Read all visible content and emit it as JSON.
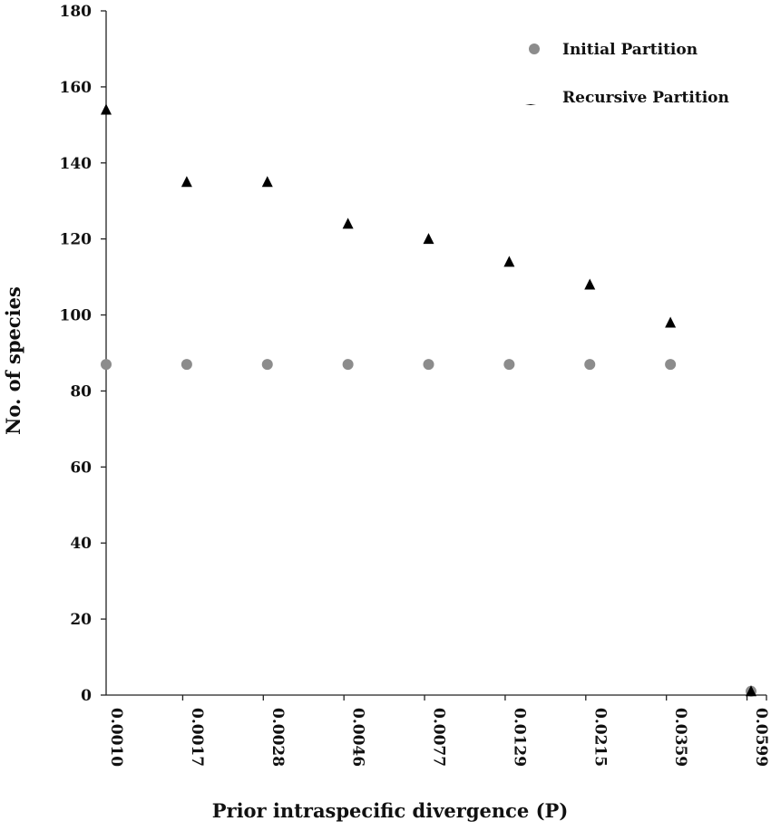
{
  "chart_data": {
    "type": "scatter",
    "title": "",
    "xlabel": "Prior intraspecific divergence (P)",
    "ylabel": "No. of species",
    "categories": [
      "0.0010",
      "0.0017",
      "0.0028",
      "0.0046",
      "0.0077",
      "0.0129",
      "0.0215",
      "0.0359",
      "0.0599"
    ],
    "ylim": [
      0,
      180
    ],
    "yticks": [
      0,
      20,
      40,
      60,
      80,
      100,
      120,
      140,
      160,
      180
    ],
    "grid": false,
    "legend_position": "top-right",
    "series": [
      {
        "name": "Initial Partition",
        "marker": "circle",
        "color": "#8c8c8c",
        "values": [
          87,
          87,
          87,
          87,
          87,
          87,
          87,
          87,
          1
        ]
      },
      {
        "name": "Recursive Partition",
        "marker": "triangle",
        "color": "#000000",
        "values": [
          154,
          135,
          135,
          124,
          120,
          114,
          108,
          98,
          1
        ]
      }
    ]
  }
}
